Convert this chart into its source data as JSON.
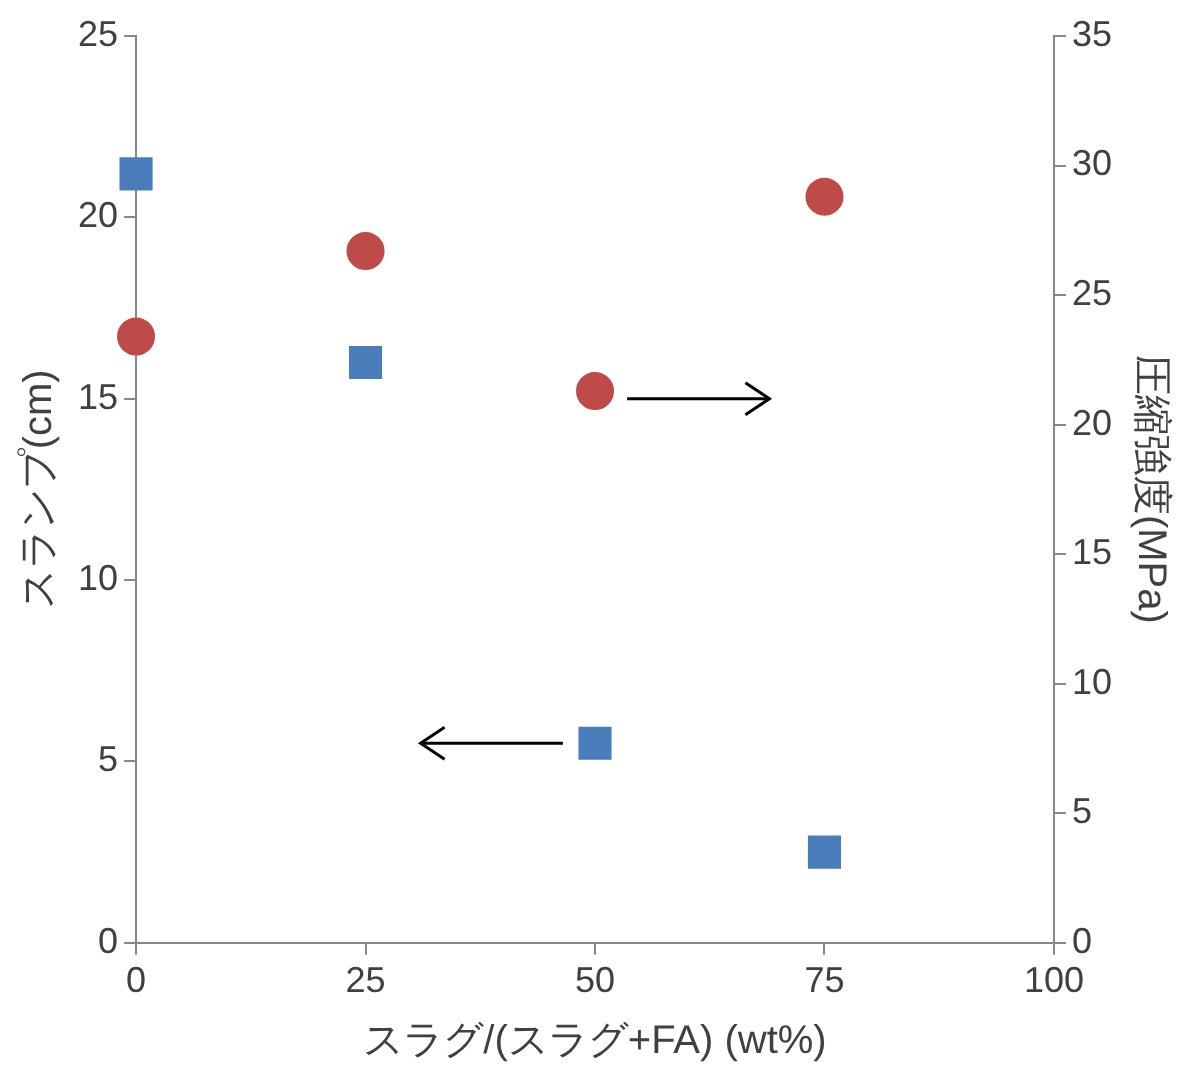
{
  "chart_data": {
    "type": "scatter",
    "xlabel": "スラグ/(スラグ+FA) (wt%)",
    "ylabel": "スランプ(cm)",
    "y2label": "圧縮強度(MPa)",
    "x": [
      0,
      25,
      50,
      75
    ],
    "series": [
      {
        "color": "#4a7ebb",
        "marker": "square",
        "values": [
          21.2,
          16.0,
          5.5,
          2.5
        ]
      },
      {
        "color": "#be4b48",
        "marker": "circle",
        "axis": "y2",
        "values": [
          23.4,
          26.7,
          21.3,
          28.8
        ]
      }
    ],
    "xlim": [
      0,
      100
    ],
    "xticks": [
      0,
      25,
      50,
      75,
      100
    ],
    "ylim": [
      0,
      25
    ],
    "yticks": [
      0,
      5,
      10,
      15,
      20,
      25
    ],
    "y2lim": [
      0,
      35
    ],
    "y2ticks": [
      0,
      5,
      10,
      15,
      20,
      25,
      30,
      35
    ],
    "grid": false,
    "legend": false
  }
}
